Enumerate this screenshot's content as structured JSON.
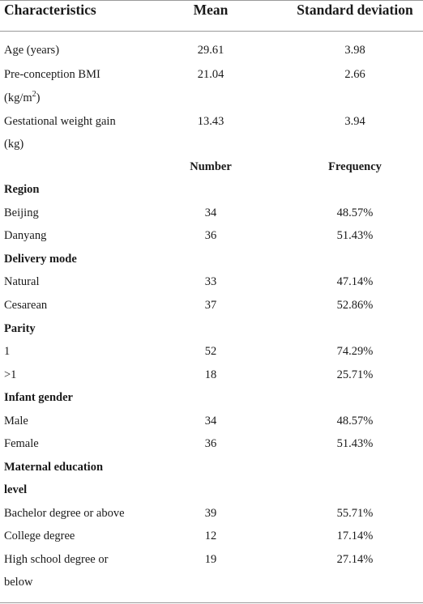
{
  "header": {
    "characteristics": "Characteristics",
    "mean": "Mean",
    "sd": "Standard deviation"
  },
  "continuous": [
    {
      "label_lines": [
        "Age (years)"
      ],
      "mean": "29.61",
      "sd": "3.98"
    },
    {
      "label_lines": [
        "Pre-conception BMI",
        "(kg/m2)"
      ],
      "mean": "21.04",
      "sd": "2.66"
    },
    {
      "label_lines": [
        "Gestational weight gain",
        "(kg)"
      ],
      "mean": "13.43",
      "sd": "3.94"
    }
  ],
  "subheader": {
    "number": "Number",
    "frequency": "Frequency"
  },
  "groups": [
    {
      "name": "Region",
      "rows": [
        {
          "label": "Beijing",
          "number": "34",
          "freq": "48.57%"
        },
        {
          "label": "Danyang",
          "number": "36",
          "freq": "51.43%"
        }
      ]
    },
    {
      "name": "Delivery mode",
      "rows": [
        {
          "label": "Natural",
          "number": "33",
          "freq": "47.14%"
        },
        {
          "label": "Cesarean",
          "number": "37",
          "freq": "52.86%"
        }
      ]
    },
    {
      "name": "Parity",
      "rows": [
        {
          "label": "1",
          "number": "52",
          "freq": "74.29%"
        },
        {
          "label": ">1",
          "number": "18",
          "freq": "25.71%"
        }
      ]
    },
    {
      "name": "Infant gender",
      "rows": [
        {
          "label": "Male",
          "number": "34",
          "freq": "48.57%"
        },
        {
          "label": "Female",
          "number": "36",
          "freq": "51.43%"
        }
      ]
    },
    {
      "name_lines": [
        "Maternal education",
        "level"
      ],
      "rows": [
        {
          "label": "Bachelor degree or above",
          "number": "39",
          "freq": "55.71%"
        },
        {
          "label": "College degree",
          "number": "12",
          "freq": "17.14%"
        },
        {
          "label_lines": [
            "High school degree or",
            "below"
          ],
          "number": "19",
          "freq": "27.14%"
        }
      ]
    }
  ]
}
